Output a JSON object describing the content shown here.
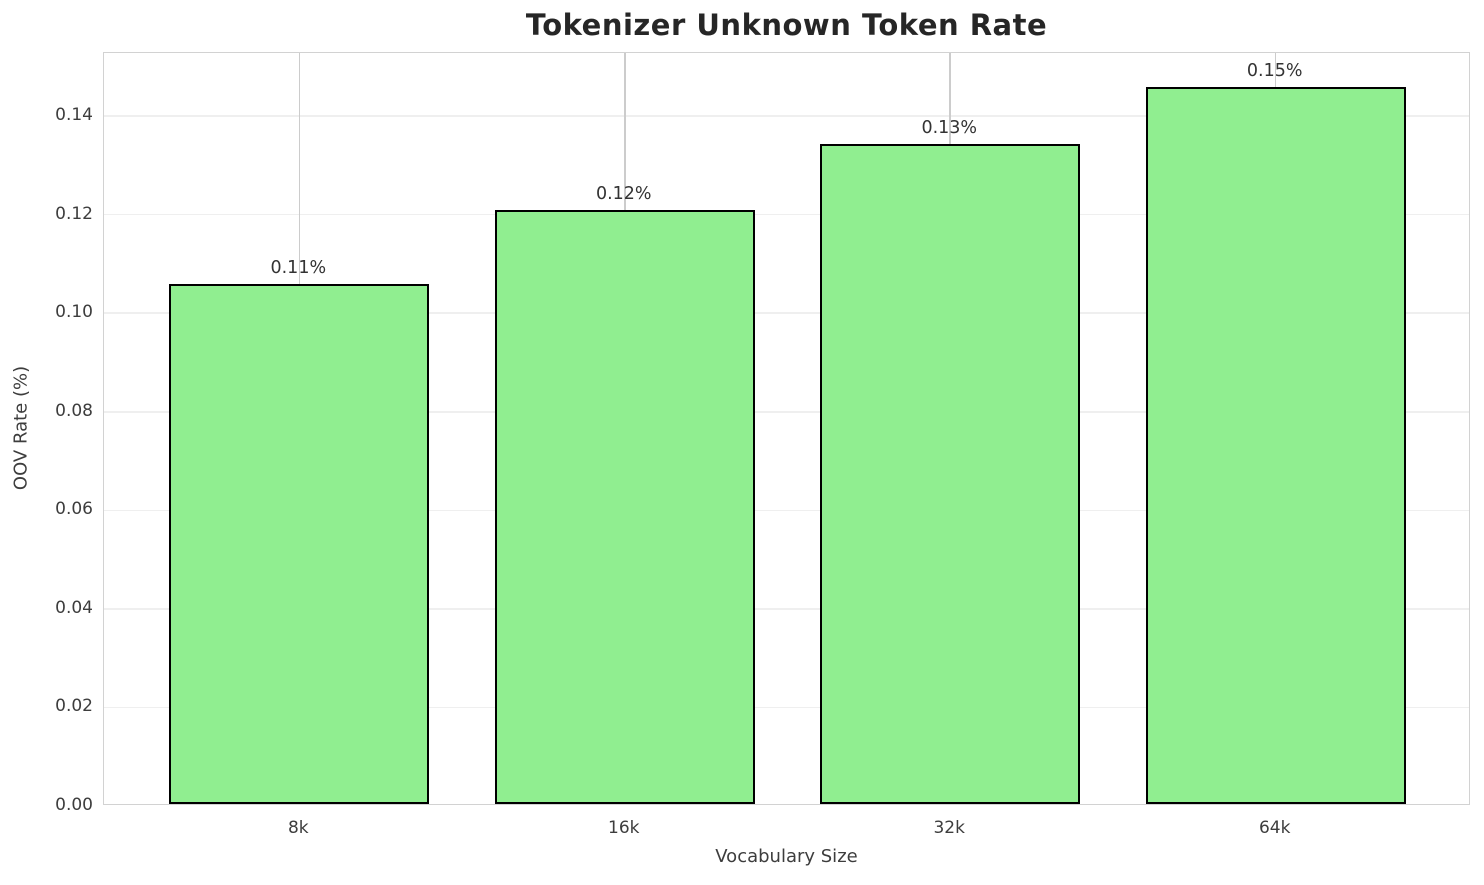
{
  "chart_data": {
    "type": "bar",
    "title": "Tokenizer Unknown Token Rate",
    "xlabel": "Vocabulary Size",
    "ylabel": "OOV Rate (%)",
    "categories": [
      "8k",
      "16k",
      "32k",
      "64k"
    ],
    "values": [
      0.1055,
      0.1205,
      0.1339,
      0.1455
    ],
    "bar_labels": [
      "0.11%",
      "0.12%",
      "0.13%",
      "0.15%"
    ],
    "yticks": [
      0,
      0.02,
      0.04,
      0.06,
      0.08,
      0.1,
      0.12,
      0.14
    ],
    "ytick_labels": [
      "0.00",
      "0.02",
      "0.04",
      "0.06",
      "0.08",
      "0.10",
      "0.12",
      "0.14"
    ],
    "ylim": [
      0,
      0.1528
    ],
    "xlim": [
      -0.6,
      3.6
    ],
    "bar_width": 0.8,
    "grid": "both",
    "legend": "none",
    "colors": {
      "bar_fill": "#90EE90",
      "bar_edge": "#000000",
      "grid_horizontal": "#efefef",
      "grid_vertical": "#cccccc",
      "spine": "#d2d2d2",
      "title_text": "#262626",
      "tick_text": "#3d3d3d",
      "label_text": "#333333"
    }
  }
}
